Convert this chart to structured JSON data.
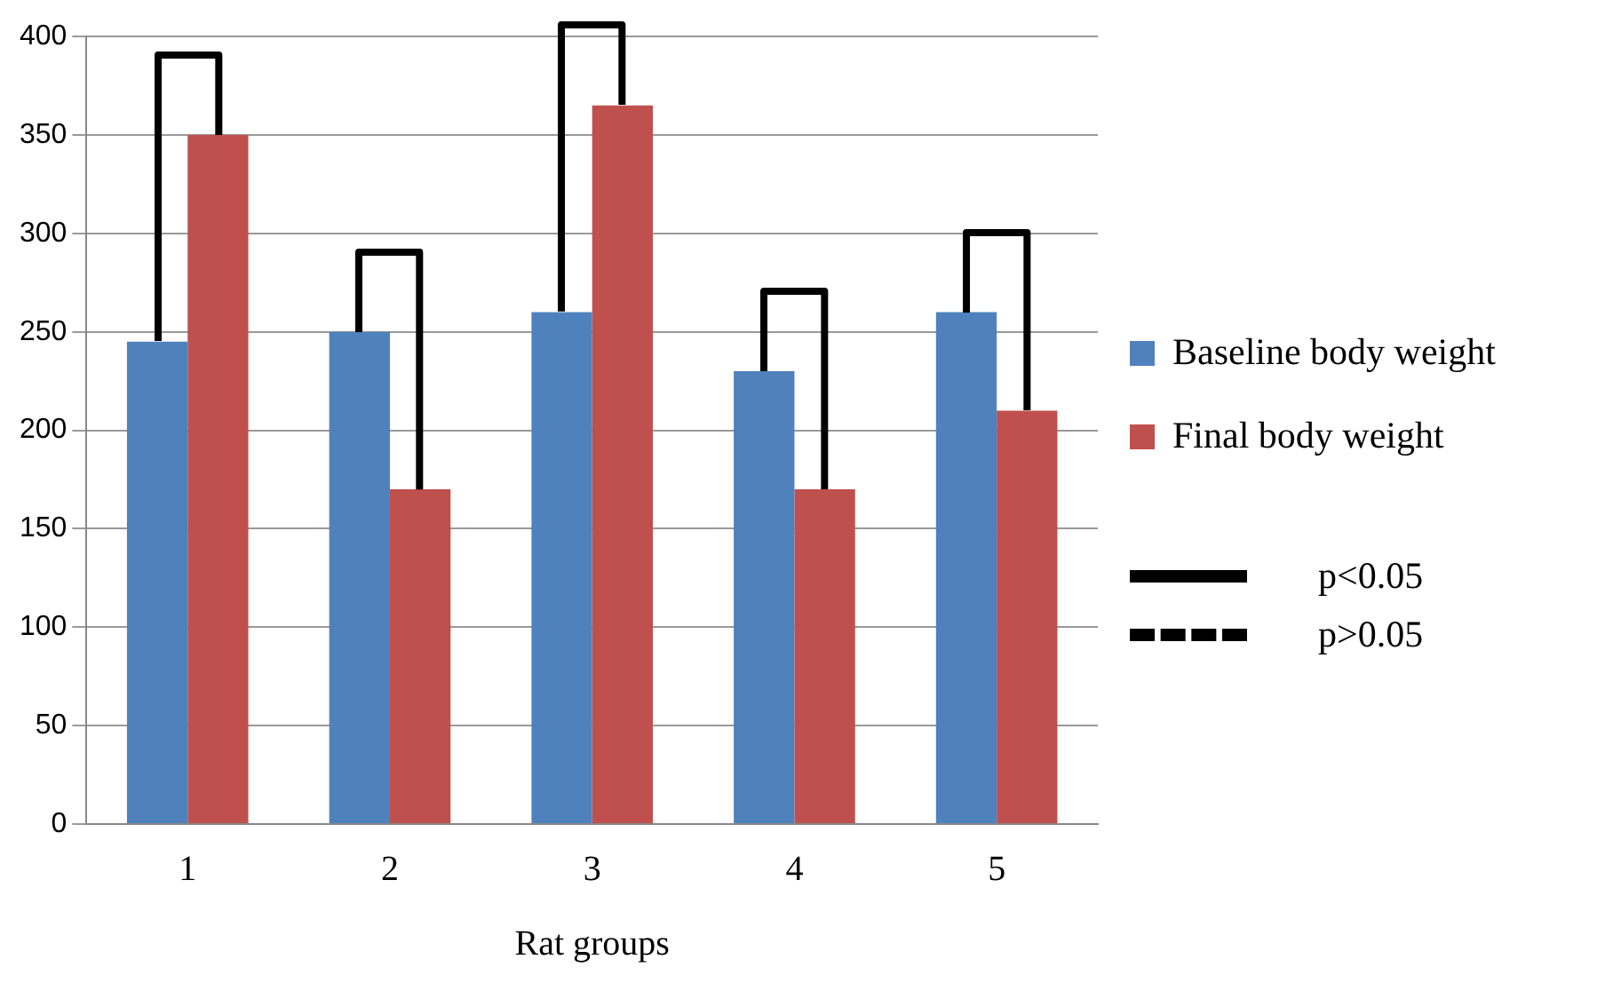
{
  "chart_data": {
    "type": "bar",
    "xlabel": "Rat groups",
    "categories": [
      "1",
      "2",
      "3",
      "4",
      "5"
    ],
    "series": [
      {
        "name": "Baseline body weight",
        "color": "#4f81bd",
        "values": [
          245,
          250,
          260,
          230,
          260
        ]
      },
      {
        "name": "Final body weight",
        "color": "#c0504d",
        "values": [
          350,
          170,
          365,
          170,
          210
        ]
      }
    ],
    "ylim": [
      0,
      400
    ],
    "yticks": [
      0,
      50,
      100,
      150,
      200,
      250,
      300,
      350,
      400
    ],
    "grid": "y",
    "legend": "right",
    "annotations": [
      "p<0.05",
      "p>0.05"
    ]
  }
}
